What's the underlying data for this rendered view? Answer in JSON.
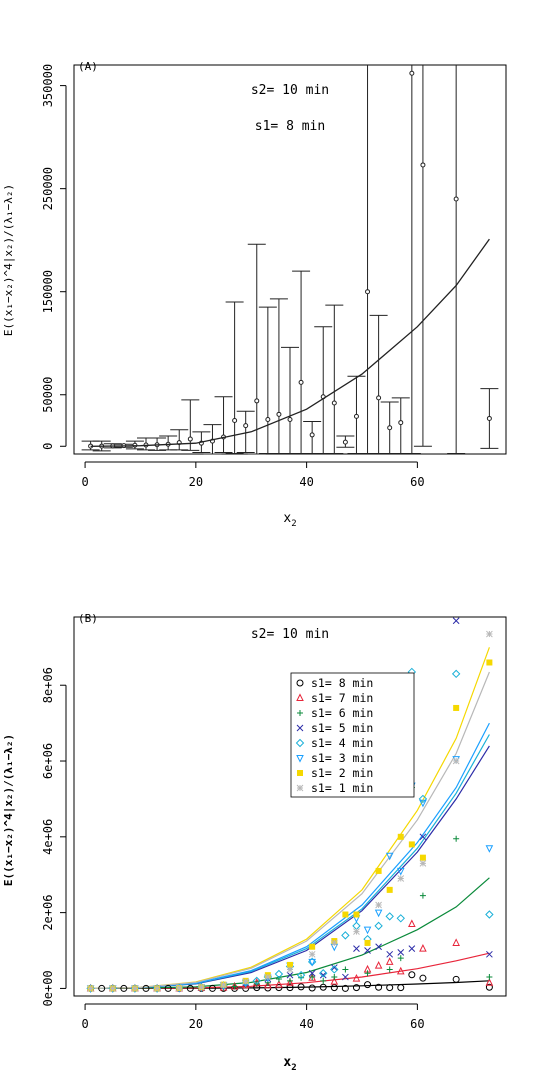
{
  "chart_data": [
    {
      "type": "scatter",
      "panel_label": "(A)",
      "annotations": [
        "s2= 10 min",
        "s1= 8 min"
      ],
      "xlabel_main": "x",
      "xlabel_sub": "2",
      "ylabel": "E((x₁−x₂)^4|x₂)/(λ₁−λ₂)",
      "xlim": [
        -2,
        76
      ],
      "ylim": [
        -7500,
        370000
      ],
      "xticks": [
        0,
        20,
        40,
        60
      ],
      "yticks": [
        0,
        50000,
        150000,
        250000,
        350000
      ],
      "error_bars": [
        {
          "x": 1,
          "y": 200,
          "lo": -3500,
          "hi": 5000
        },
        {
          "x": 3,
          "y": 200,
          "lo": -4500,
          "hi": 5000
        },
        {
          "x": 5,
          "y": 400,
          "lo": -1500,
          "hi": 2500
        },
        {
          "x": 7,
          "y": 600,
          "lo": -1000,
          "hi": 2000
        },
        {
          "x": 9,
          "y": 1000,
          "lo": -2500,
          "hi": 5000
        },
        {
          "x": 11,
          "y": 1200,
          "lo": -3500,
          "hi": 8000
        },
        {
          "x": 13,
          "y": 1500,
          "lo": -4000,
          "hi": 8000
        },
        {
          "x": 15,
          "y": 2000,
          "lo": -3500,
          "hi": 10000
        },
        {
          "x": 17,
          "y": 3500,
          "lo": -3500,
          "hi": 16000
        },
        {
          "x": 19,
          "y": 7000,
          "lo": -4000,
          "hi": 45000
        },
        {
          "x": 21,
          "y": 3000,
          "lo": -6000,
          "hi": 14000
        },
        {
          "x": 23,
          "y": 5000,
          "lo": -8000,
          "hi": 21000
        },
        {
          "x": 25,
          "y": 9000,
          "lo": -6000,
          "hi": 48000
        },
        {
          "x": 27,
          "y": 25000,
          "lo": -7000,
          "hi": 140000
        },
        {
          "x": 29,
          "y": 20000,
          "lo": -6000,
          "hi": 34000
        },
        {
          "x": 31,
          "y": 44000,
          "lo": -8000,
          "hi": 196000
        },
        {
          "x": 33,
          "y": 26000,
          "lo": -7000,
          "hi": 135000
        },
        {
          "x": 35,
          "y": 31000,
          "lo": -7000,
          "hi": 143000
        },
        {
          "x": 37,
          "y": 26000,
          "lo": -7000,
          "hi": 96000
        },
        {
          "x": 39,
          "y": 62000,
          "lo": -7000,
          "hi": 170000
        },
        {
          "x": 41,
          "y": 11000,
          "lo": -7000,
          "hi": 24000
        },
        {
          "x": 43,
          "y": 48000,
          "lo": -7000,
          "hi": 116000
        },
        {
          "x": 45,
          "y": 42000,
          "lo": -7000,
          "hi": 137000
        },
        {
          "x": 47,
          "y": 4000,
          "lo": -1000,
          "hi": 10000
        },
        {
          "x": 49,
          "y": 29000,
          "lo": -7000,
          "hi": 68000
        },
        {
          "x": 51,
          "y": 150000,
          "lo": -7000,
          "hi": 370000
        },
        {
          "x": 53,
          "y": 47000,
          "lo": -7000,
          "hi": 127000
        },
        {
          "x": 55,
          "y": 18000,
          "lo": -7000,
          "hi": 43000
        },
        {
          "x": 57,
          "y": 23000,
          "lo": -7000,
          "hi": 47000
        },
        {
          "x": 59,
          "y": 362000,
          "lo": -7000,
          "hi": 370000
        },
        {
          "x": 61,
          "y": 273000,
          "lo": 0,
          "hi": 370000
        },
        {
          "x": 67,
          "y": 240000,
          "lo": -7000,
          "hi": 370000
        },
        {
          "x": 73,
          "y": 27000,
          "lo": -2000,
          "hi": 56000
        }
      ],
      "fit_curve": {
        "x": [
          1,
          10,
          20,
          30,
          40,
          50,
          60,
          67,
          73
        ],
        "y": [
          0,
          600,
          3000,
          14000,
          36000,
          70000,
          116000,
          156000,
          201000
        ]
      }
    },
    {
      "type": "scatter",
      "panel_label": "(B)",
      "annotations": [
        "s2= 10 min"
      ],
      "xlabel_main": "x",
      "xlabel_sub": "2",
      "ylabel": "E((x₁−x₂)^4|x₂)/(λ₁−λ₂)",
      "xlim": [
        -2,
        76
      ],
      "ylim": [
        -200000,
        9800000
      ],
      "xticks": [
        0,
        20,
        40,
        60
      ],
      "yticks": [
        0,
        2000000,
        4000000,
        6000000,
        8000000
      ],
      "ytick_labels": [
        "0e+00",
        "2e+06",
        "4e+06",
        "6e+06",
        "8e+06"
      ],
      "legend_position": "top-right",
      "series": [
        {
          "name": "s1= 8 min",
          "color": "#000000",
          "marker": "circle",
          "x": [
            1,
            3,
            5,
            7,
            9,
            11,
            13,
            15,
            17,
            19,
            21,
            23,
            25,
            27,
            29,
            31,
            33,
            35,
            37,
            39,
            41,
            43,
            45,
            47,
            49,
            51,
            53,
            55,
            57,
            59,
            61,
            67,
            73
          ],
          "y": [
            0,
            0,
            0,
            0,
            0,
            0,
            0,
            0,
            0,
            0,
            0,
            0,
            0,
            0,
            0,
            20000,
            10000,
            20000,
            20000,
            40000,
            10000,
            30000,
            20000,
            0,
            20000,
            100000,
            30000,
            20000,
            20000,
            360000,
            270000,
            240000,
            30000
          ],
          "curve": {
            "x": [
              1,
              10,
              20,
              30,
              40,
              50,
              60,
              67,
              73
            ],
            "y": [
              0,
              1000,
              3000,
              14000,
              36000,
              70000,
              116000,
              156000,
              201000
            ]
          }
        },
        {
          "name": "s1= 7 min",
          "color": "#e8253a",
          "marker": "triangle-up",
          "x": [
            1,
            5,
            9,
            13,
            17,
            21,
            25,
            27,
            29,
            31,
            33,
            35,
            37,
            41,
            45,
            49,
            51,
            53,
            55,
            57,
            59,
            61,
            67,
            73
          ],
          "y": [
            0,
            0,
            0,
            0,
            0,
            10000,
            20000,
            50000,
            80000,
            150000,
            80000,
            100000,
            150000,
            280000,
            180000,
            260000,
            500000,
            600000,
            700000,
            450000,
            1700000,
            1050000,
            1200000,
            150000
          ],
          "curve": {
            "x": [
              1,
              10,
              20,
              30,
              40,
              50,
              60,
              67,
              73
            ],
            "y": [
              0,
              4000,
              15000,
              55000,
              150000,
              300000,
              520000,
              730000,
              930000
            ]
          }
        },
        {
          "name": "s1= 6 min",
          "color": "#0a8a3a",
          "marker": "plus",
          "x": [
            1,
            5,
            9,
            13,
            17,
            21,
            25,
            27,
            29,
            31,
            33,
            35,
            37,
            39,
            41,
            43,
            45,
            47,
            51,
            55,
            57,
            59,
            61,
            67,
            73
          ],
          "y": [
            0,
            0,
            0,
            0,
            0,
            10000,
            20000,
            50000,
            100000,
            120000,
            150000,
            250000,
            200000,
            280000,
            300000,
            200000,
            300000,
            500000,
            400000,
            500000,
            800000,
            5300000,
            2450000,
            3950000,
            300000
          ],
          "curve": {
            "x": [
              1,
              10,
              20,
              30,
              40,
              50,
              60,
              67,
              73
            ],
            "y": [
              0,
              10000,
              40000,
              160000,
              420000,
              880000,
              1550000,
              2150000,
              2920000
            ]
          }
        },
        {
          "name": "s1= 5 min",
          "color": "#2c2ca8",
          "marker": "cross",
          "x": [
            1,
            5,
            9,
            13,
            17,
            21,
            25,
            29,
            33,
            37,
            41,
            43,
            45,
            47,
            49,
            51,
            53,
            55,
            57,
            59,
            61,
            67,
            73
          ],
          "y": [
            0,
            0,
            0,
            0,
            10000,
            20000,
            80000,
            150000,
            250000,
            350000,
            400000,
            350000,
            550000,
            300000,
            1050000,
            1000000,
            1100000,
            900000,
            950000,
            1050000,
            4000000,
            9700000,
            900000
          ],
          "curve": {
            "x": [
              1,
              10,
              20,
              30,
              40,
              50,
              60,
              67,
              73
            ],
            "y": [
              0,
              25000,
              120000,
              420000,
              1000000,
              2050000,
              3600000,
              5000000,
              6400000
            ]
          }
        },
        {
          "name": "s1= 4 min",
          "color": "#1ab0d8",
          "marker": "diamond",
          "x": [
            1,
            5,
            9,
            13,
            17,
            21,
            25,
            29,
            31,
            33,
            35,
            37,
            39,
            41,
            43,
            45,
            47,
            49,
            51,
            53,
            55,
            57,
            59,
            61,
            67,
            73
          ],
          "y": [
            0,
            0,
            0,
            0,
            10000,
            30000,
            80000,
            150000,
            200000,
            300000,
            380000,
            580000,
            350000,
            700000,
            400000,
            500000,
            1400000,
            1650000,
            1300000,
            1650000,
            1900000,
            1850000,
            8350000,
            5000000,
            8300000,
            1950000
          ],
          "curve": {
            "x": [
              1,
              10,
              20,
              30,
              40,
              50,
              60,
              67,
              73
            ],
            "y": [
              0,
              25000,
              130000,
              450000,
              1050000,
              2100000,
              3700000,
              5150000,
              6700000
            ]
          }
        },
        {
          "name": "s1= 3 min",
          "color": "#1aa0ff",
          "marker": "triangle-down",
          "x": [
            1,
            5,
            9,
            13,
            17,
            21,
            25,
            29,
            33,
            37,
            41,
            45,
            49,
            51,
            53,
            55,
            57,
            59,
            61,
            67,
            73
          ],
          "y": [
            0,
            0,
            0,
            0,
            10000,
            30000,
            80000,
            150000,
            280000,
            600000,
            700000,
            1100000,
            1850000,
            1550000,
            2000000,
            3500000,
            3100000,
            5350000,
            4900000,
            6050000,
            3700000
          ],
          "curve": {
            "x": [
              1,
              10,
              20,
              30,
              40,
              50,
              60,
              67,
              73
            ],
            "y": [
              0,
              25000,
              140000,
              470000,
              1100000,
              2200000,
              3850000,
              5300000,
              7000000
            ]
          }
        },
        {
          "name": "s1= 2 min",
          "color": "#f5d800",
          "marker": "square",
          "x": [
            1,
            5,
            9,
            13,
            17,
            21,
            25,
            29,
            33,
            37,
            41,
            45,
            47,
            49,
            51,
            53,
            55,
            57,
            59,
            61,
            67,
            73
          ],
          "y": [
            0,
            0,
            0,
            0,
            10000,
            30000,
            100000,
            200000,
            350000,
            620000,
            1100000,
            1250000,
            1950000,
            1950000,
            1200000,
            3100000,
            2600000,
            4000000,
            3800000,
            3450000,
            7400000,
            8600000
          ],
          "curve": {
            "x": [
              1,
              10,
              20,
              30,
              40,
              50,
              60,
              67,
              73
            ],
            "y": [
              0,
              30000,
              170000,
              560000,
              1300000,
              2600000,
              4700000,
              6600000,
              9000000
            ]
          }
        },
        {
          "name": "s1= 1 min",
          "color": "#b8b8b8",
          "marker": "asterisk",
          "x": [
            1,
            5,
            9,
            13,
            17,
            21,
            25,
            29,
            33,
            37,
            41,
            45,
            49,
            53,
            57,
            61,
            67,
            73
          ],
          "y": [
            0,
            0,
            0,
            0,
            10000,
            30000,
            90000,
            180000,
            300000,
            500000,
            900000,
            1200000,
            1500000,
            2200000,
            2900000,
            3300000,
            6000000,
            9350000
          ],
          "curve": {
            "x": [
              1,
              10,
              20,
              30,
              40,
              50,
              60,
              67,
              73
            ],
            "y": [
              0,
              28000,
              160000,
              530000,
              1250000,
              2500000,
              4450000,
              6200000,
              8350000
            ]
          }
        }
      ]
    }
  ]
}
